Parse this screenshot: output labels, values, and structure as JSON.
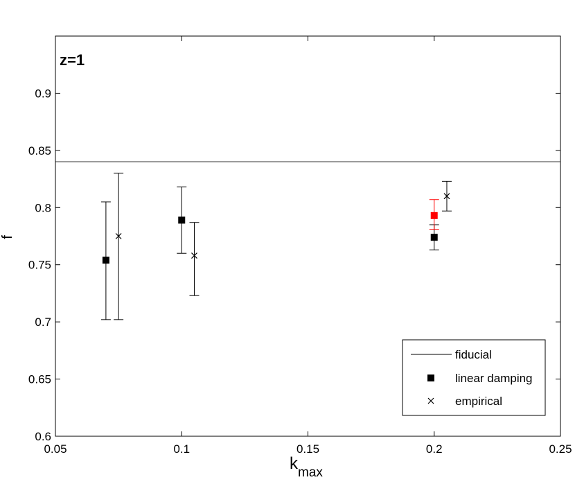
{
  "chart_data": {
    "type": "scatter",
    "title": "",
    "annotation": "z=1",
    "xlabel": "k",
    "xlabel_sub": "max",
    "ylabel": "f",
    "xlim": [
      0.05,
      0.25
    ],
    "ylim": [
      0.6,
      0.95
    ],
    "xticks": [
      0.05,
      0.1,
      0.15,
      0.2,
      0.25
    ],
    "xtick_labels": [
      "0.05",
      "0.1",
      "0.15",
      "0.2",
      "0.25"
    ],
    "yticks": [
      0.6,
      0.65,
      0.7,
      0.75,
      0.8,
      0.85,
      0.9
    ],
    "ytick_labels": [
      "0.6",
      "0.65",
      "0.7",
      "0.75",
      "0.8",
      "0.85",
      "0.9"
    ],
    "grid": false,
    "legend_position": "bottom-right",
    "fiducial": {
      "name": "fiducial",
      "y": 0.84,
      "color": "#000000"
    },
    "series": [
      {
        "name": "linear damping",
        "marker": "square",
        "color": "#000000",
        "points": [
          {
            "x": 0.07,
            "y": 0.754,
            "ylow": 0.702,
            "yhigh": 0.805
          },
          {
            "x": 0.1,
            "y": 0.789,
            "ylow": 0.76,
            "yhigh": 0.818
          },
          {
            "x": 0.2,
            "y": 0.774,
            "ylow": 0.763,
            "yhigh": 0.785
          }
        ]
      },
      {
        "name": "empirical",
        "marker": "x",
        "color": "#000000",
        "points": [
          {
            "x": 0.075,
            "y": 0.775,
            "ylow": 0.702,
            "yhigh": 0.83
          },
          {
            "x": 0.105,
            "y": 0.758,
            "ylow": 0.723,
            "yhigh": 0.787
          },
          {
            "x": 0.205,
            "y": 0.81,
            "ylow": 0.797,
            "yhigh": 0.823
          }
        ]
      },
      {
        "marker": "square",
        "color": "#ff0000",
        "points": [
          {
            "x": 0.2,
            "y": 0.793,
            "ylow": 0.781,
            "yhigh": 0.807
          }
        ]
      }
    ]
  }
}
